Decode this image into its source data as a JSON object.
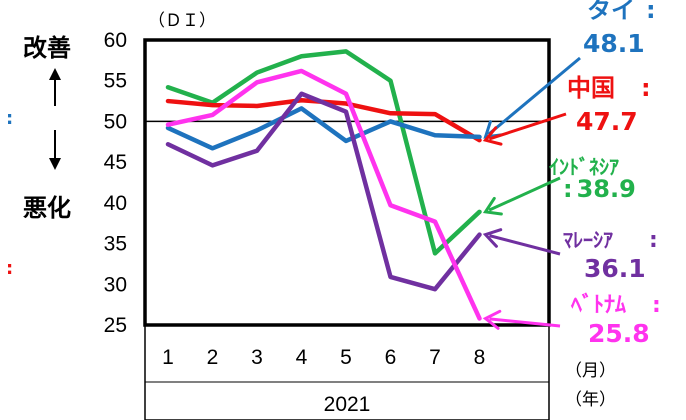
{
  "chart_data": {
    "type": "line",
    "yunit": "（ＤＩ）",
    "categories": [
      "1",
      "2",
      "3",
      "4",
      "5",
      "6",
      "7",
      "8"
    ],
    "year": "2021",
    "month_unit": "（月）",
    "year_unit": "（年）",
    "ylim": [
      25,
      60
    ],
    "yticks": [
      "60",
      "55",
      "50",
      "45",
      "40",
      "35",
      "30",
      "25"
    ],
    "reference_line": 50,
    "axis_note_top": "改善",
    "axis_note_bottom": "悪化",
    "series": [
      {
        "name": "ｲﾝﾄﾞﾈｼｱ",
        "value_label": "38.9",
        "color": "#22b14c",
        "values": [
          54.2,
          52.3,
          56.0,
          58.0,
          58.6,
          55.0,
          33.8,
          38.9
        ]
      },
      {
        "name": "中国",
        "value_label": "47.7",
        "color": "#ee1111",
        "values": [
          52.5,
          52.0,
          51.9,
          52.6,
          52.2,
          51.0,
          50.9,
          47.7
        ]
      },
      {
        "name": "タイ",
        "value_label": "48.1",
        "color": "#1e73be",
        "values": [
          49.2,
          46.7,
          48.9,
          51.6,
          47.6,
          50.0,
          48.3,
          48.1
        ]
      },
      {
        "name": "ﾏﾚｰｼｱ",
        "value_label": "36.1",
        "color": "#7030a0",
        "values": [
          47.2,
          44.6,
          46.4,
          53.4,
          51.2,
          30.9,
          29.4,
          36.1
        ]
      },
      {
        "name": "ﾍﾞﾄﾅﾑ",
        "value_label": "25.8",
        "color": "#ff33ee",
        "values": [
          49.6,
          50.8,
          54.8,
          56.2,
          53.4,
          39.7,
          37.7,
          25.8
        ]
      }
    ]
  }
}
